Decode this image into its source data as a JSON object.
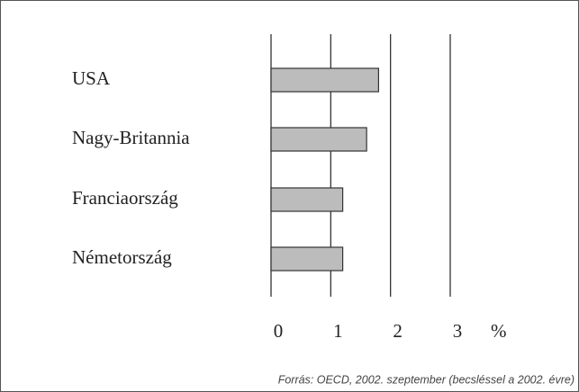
{
  "chart_data": {
    "type": "bar",
    "orientation": "horizontal",
    "categories": [
      "USA",
      "Nagy-Britannia",
      "Franciaország",
      "Németország"
    ],
    "values": [
      1.8,
      1.6,
      1.2,
      1.2
    ],
    "color": "#bcbcbc",
    "xlim": [
      0,
      3
    ],
    "xticks": [
      0,
      1,
      2,
      3
    ],
    "xlabel": "%",
    "grid": true,
    "source": "Forrás: OECD, 2002. szeptember (becsléssel a 2002. évre)"
  }
}
